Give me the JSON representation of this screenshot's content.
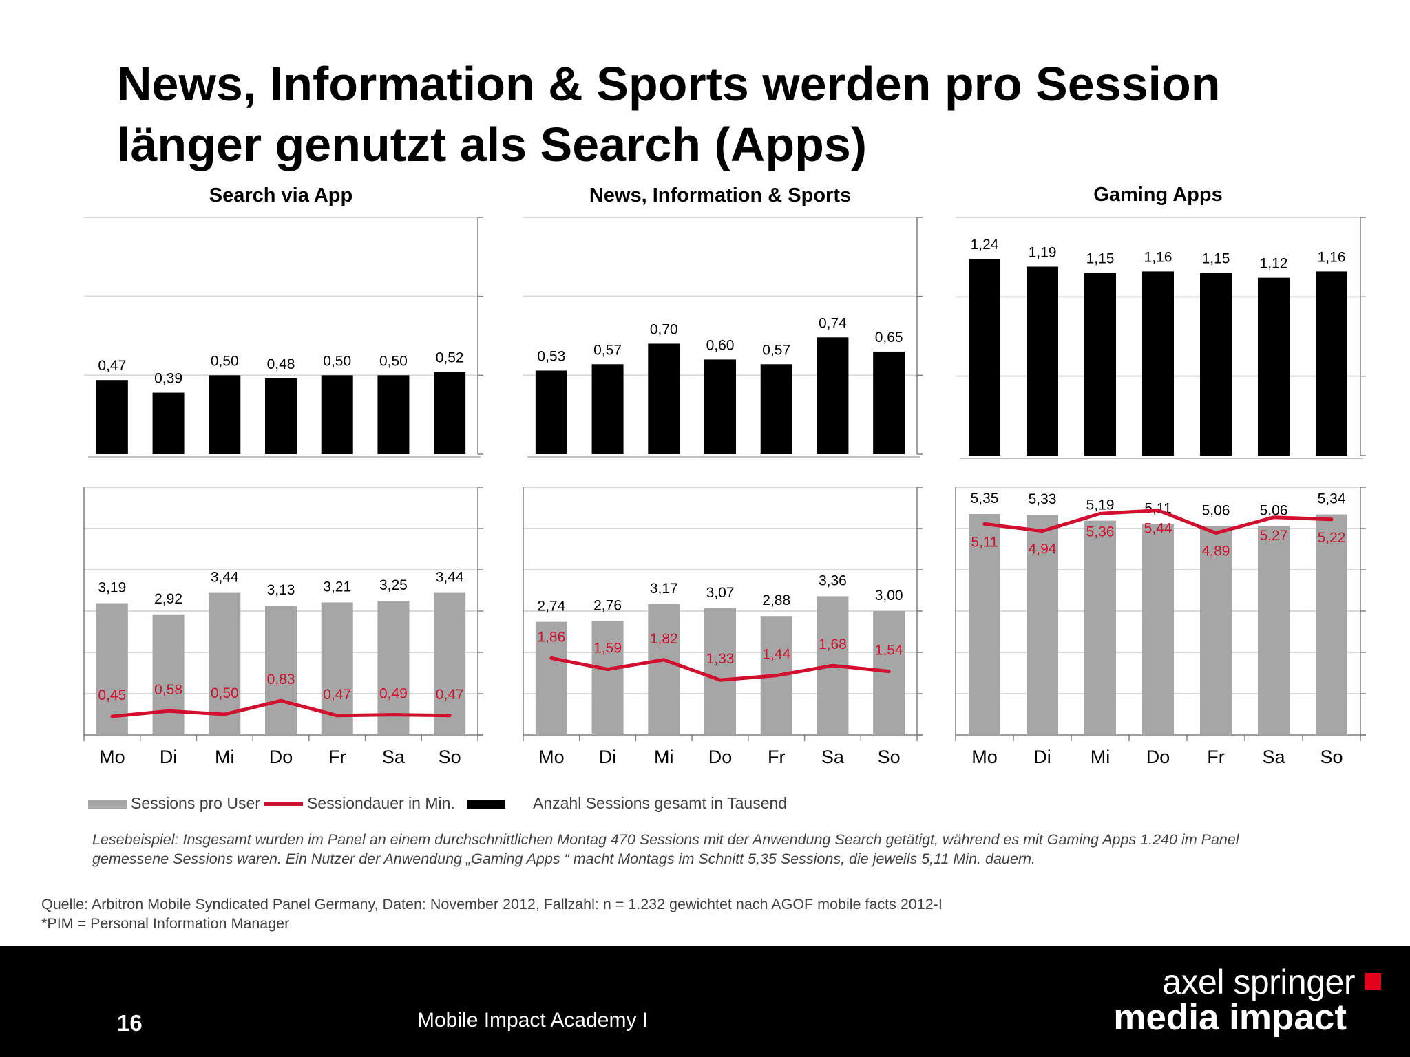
{
  "slide": {
    "title_line1": "News, Information & Sports werden pro Session",
    "title_line2": "länger genutzt als Search (Apps)",
    "page_number": "16",
    "footer_label": "Mobile Impact Academy I",
    "brand_line1": "axel springer",
    "brand_line2": "media impact",
    "reading_example_line1": "Lesebeispiel:  Insgesamt wurden im Panel  an einem durchschnittlichen Montag 470  Sessions mit der Anwendung Search  getätigt, während es mit Gaming Apps 1.240 im Panel",
    "reading_example_line2": "gemessene Sessions waren.  Ein  Nutzer der Anwendung  „Gaming Apps “ macht  Montags im Schnitt 5,35 Sessions, die jeweils 5,11  Min. dauern.",
    "source_line1": "Quelle: Arbitron Mobile Syndicated Panel Germany, Daten: November 2012, Fallzahl: n = 1.232 gewichtet nach AGOF mobile facts 2012-I",
    "source_line2": "*PIM = Personal Information Manager"
  },
  "legend": {
    "sessions_per_user": "Sessions pro User",
    "session_duration": "Sessiondauer in Min.",
    "total_sessions": "Anzahl Sessions gesamt in Tausend"
  },
  "colors": {
    "total_bar": "#000000",
    "per_user_bar": "#a6a6a6",
    "duration_line": "#d0102e",
    "duration_label": "#d0102e",
    "gridline": "#d9d9d9",
    "brand_red": "#e2001a"
  },
  "chart_data": [
    {
      "type": "bar+line",
      "title": "Search via App",
      "categories": [
        "Mo",
        "Di",
        "Mi",
        "Do",
        "Fr",
        "Sa",
        "So"
      ],
      "upper": {
        "series_name": "Anzahl Sessions gesamt in Tausend",
        "values": [
          0.47,
          0.39,
          0.5,
          0.48,
          0.5,
          0.5,
          0.52
        ],
        "labels": [
          "0,47",
          "0,39",
          "0,50",
          "0,48",
          "0,50",
          "0,50",
          "0,52"
        ],
        "ylim": [
          0,
          1.5
        ]
      },
      "lower_bars": {
        "series_name": "Sessions pro User",
        "values": [
          3.19,
          2.92,
          3.44,
          3.13,
          3.21,
          3.25,
          3.44
        ],
        "labels": [
          "3,19",
          "2,92",
          "3,44",
          "3,13",
          "3,21",
          "3,25",
          "3,44"
        ],
        "ylim": [
          0,
          6
        ]
      },
      "lower_line": {
        "series_name": "Sessiondauer in Min.",
        "values": [
          0.45,
          0.58,
          0.5,
          0.83,
          0.47,
          0.49,
          0.47
        ],
        "labels": [
          "0,45",
          "0,58",
          "0,50",
          "0,83",
          "0,47",
          "0,49",
          "0,47"
        ],
        "ylim": [
          0,
          6
        ]
      }
    },
    {
      "type": "bar+line",
      "title": "News, Information & Sports",
      "categories": [
        "Mo",
        "Di",
        "Mi",
        "Do",
        "Fr",
        "Sa",
        "So"
      ],
      "upper": {
        "series_name": "Anzahl Sessions gesamt in Tausend",
        "values": [
          0.53,
          0.57,
          0.7,
          0.6,
          0.57,
          0.74,
          0.65
        ],
        "labels": [
          "0,53",
          "0,57",
          "0,70",
          "0,60",
          "0,57",
          "0,74",
          "0,65"
        ],
        "ylim": [
          0,
          1.5
        ]
      },
      "lower_bars": {
        "series_name": "Sessions pro User",
        "values": [
          2.74,
          2.76,
          3.17,
          3.07,
          2.88,
          3.36,
          3.0
        ],
        "labels": [
          "2,74",
          "2,76",
          "3,17",
          "3,07",
          "2,88",
          "3,36",
          "3,00"
        ],
        "ylim": [
          0,
          6
        ]
      },
      "lower_line": {
        "series_name": "Sessiondauer in Min.",
        "values": [
          1.86,
          1.59,
          1.82,
          1.33,
          1.44,
          1.68,
          1.54
        ],
        "labels": [
          "1,86",
          "1,59",
          "1,82",
          "1,33",
          "1,44",
          "1,68",
          "1,54"
        ],
        "ylim": [
          0,
          6
        ]
      }
    },
    {
      "type": "bar+line",
      "title": "Gaming Apps",
      "categories": [
        "Mo",
        "Di",
        "Mi",
        "Do",
        "Fr",
        "Sa",
        "So"
      ],
      "upper": {
        "series_name": "Anzahl Sessions gesamt in Tausend",
        "values": [
          1.24,
          1.19,
          1.15,
          1.16,
          1.15,
          1.12,
          1.16
        ],
        "labels": [
          "1,24",
          "1,19",
          "1,15",
          "1,16",
          "1,15",
          "1,12",
          "1,16"
        ],
        "ylim": [
          0,
          1.5
        ]
      },
      "lower_bars": {
        "series_name": "Sessions pro User",
        "values": [
          5.35,
          5.33,
          5.19,
          5.11,
          5.06,
          5.06,
          5.34
        ],
        "labels": [
          "5,35",
          "5,33",
          "5,19",
          "5,11",
          "5,06",
          "5,06",
          "5,34"
        ],
        "ylim": [
          0,
          6
        ]
      },
      "lower_line": {
        "series_name": "Sessiondauer in Min.",
        "values": [
          5.11,
          4.94,
          5.36,
          5.44,
          4.89,
          5.27,
          5.22
        ],
        "labels": [
          "5,11",
          "4,94",
          "5,36",
          "5,44",
          "4,89",
          "5,27",
          "5,22"
        ],
        "ylim": [
          0,
          6
        ]
      }
    }
  ]
}
